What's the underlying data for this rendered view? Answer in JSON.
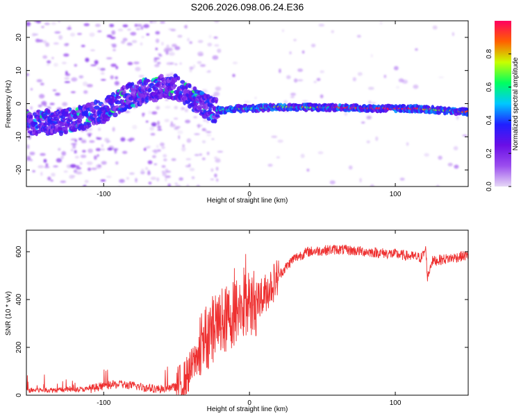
{
  "title": "S206.2026.098.06.24.E36",
  "chart_data": [
    {
      "type": "heatmap",
      "xlabel": "Height of straight line (km)",
      "ylabel": "Frequency (Hz)",
      "xlim": [
        -153,
        150
      ],
      "ylim": [
        -25,
        25
      ],
      "xticks": [
        -100,
        0,
        100
      ],
      "yticks": [
        -20,
        -10,
        0,
        10,
        20
      ],
      "colorbar": {
        "label": "Normalized spectral amplitude",
        "range": [
          0,
          1
        ],
        "ticks": [
          "0.0",
          "0.2",
          "0.4",
          "0.6",
          "0.8"
        ],
        "stops": [
          "#e6d8f6",
          "#9b4dee",
          "#6a0ee6",
          "#2020ff",
          "#00c8ff",
          "#00ff60",
          "#c8ff00",
          "#ff6000",
          "#ff0060"
        ]
      },
      "ridge": [
        {
          "x": -145,
          "f": -5.5
        },
        {
          "x": -130,
          "f": -6
        },
        {
          "x": -120,
          "f": -4.5
        },
        {
          "x": -105,
          "f": -3
        },
        {
          "x": -95,
          "f": -1
        },
        {
          "x": -85,
          "f": 2
        },
        {
          "x": -70,
          "f": 4
        },
        {
          "x": -60,
          "f": 5
        },
        {
          "x": -50,
          "f": 5
        },
        {
          "x": -40,
          "f": 2
        },
        {
          "x": -30,
          "f": -1
        },
        {
          "x": -25,
          "f": -2
        },
        {
          "x": -20,
          "f": -2
        },
        {
          "x": -10,
          "f": -1.5
        },
        {
          "x": 0,
          "f": -1.5
        },
        {
          "x": 20,
          "f": -1
        },
        {
          "x": 60,
          "f": -1.2
        },
        {
          "x": 100,
          "f": -1.5
        },
        {
          "x": 115,
          "f": -1.5
        },
        {
          "x": 125,
          "f": -1.8
        },
        {
          "x": 148,
          "f": -2.5
        }
      ]
    },
    {
      "type": "line",
      "xlabel": "Height of straight line (km)",
      "ylabel": "SNR (10 * v/v)",
      "xlim": [
        -153,
        150
      ],
      "ylim": [
        0,
        690
      ],
      "xticks": [
        -100,
        0,
        100
      ],
      "yticks": [
        0,
        200,
        400,
        600
      ],
      "color": "#ee3030",
      "envelope": [
        {
          "x": -153,
          "y": 20
        },
        {
          "x": -110,
          "y": 25
        },
        {
          "x": -100,
          "y": 40
        },
        {
          "x": -90,
          "y": 45
        },
        {
          "x": -80,
          "y": 40
        },
        {
          "x": -70,
          "y": 30
        },
        {
          "x": -60,
          "y": 25
        },
        {
          "x": -50,
          "y": 35
        },
        {
          "x": -45,
          "y": 60
        },
        {
          "x": -40,
          "y": 110
        },
        {
          "x": -35,
          "y": 180
        },
        {
          "x": -30,
          "y": 240
        },
        {
          "x": -25,
          "y": 280
        },
        {
          "x": -20,
          "y": 300
        },
        {
          "x": -15,
          "y": 320
        },
        {
          "x": -10,
          "y": 350
        },
        {
          "x": -5,
          "y": 370
        },
        {
          "x": 0,
          "y": 380
        },
        {
          "x": 5,
          "y": 390
        },
        {
          "x": 10,
          "y": 420
        },
        {
          "x": 20,
          "y": 500
        },
        {
          "x": 30,
          "y": 570
        },
        {
          "x": 40,
          "y": 600
        },
        {
          "x": 60,
          "y": 610
        },
        {
          "x": 80,
          "y": 600
        },
        {
          "x": 100,
          "y": 590
        },
        {
          "x": 118,
          "y": 575
        },
        {
          "x": 121,
          "y": 610
        },
        {
          "x": 122,
          "y": 490
        },
        {
          "x": 125,
          "y": 560
        },
        {
          "x": 150,
          "y": 585
        }
      ]
    }
  ]
}
